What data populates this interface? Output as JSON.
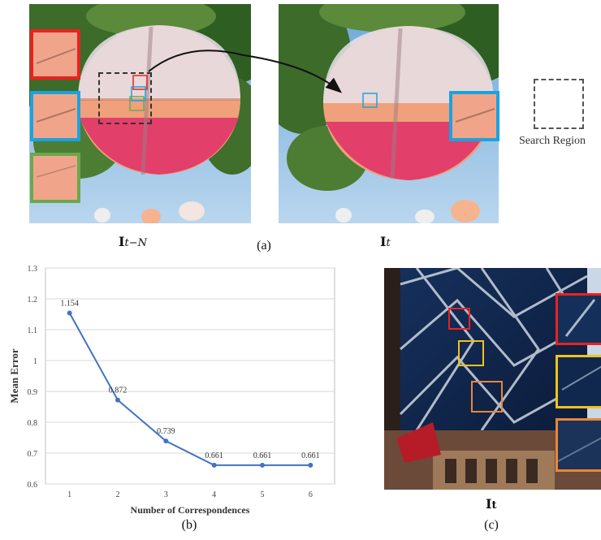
{
  "figure": {
    "panel_a": {
      "caption": "(a)",
      "left_label_main": "I",
      "left_label_sub": "t−N",
      "right_label_main": "I",
      "right_label_sub": "t",
      "legend_label": "Search Region",
      "colors": {
        "red": "#e8231f",
        "blue": "#1aa3e0",
        "green": "#6aa84f",
        "dashed": "#333333"
      }
    },
    "panel_b": {
      "caption": "(b)"
    },
    "panel_c": {
      "caption": "(c)",
      "label_main": "I",
      "label_sub": "t",
      "colors": {
        "red": "#e8231f",
        "yellow": "#f2c21b",
        "orange": "#e8873a"
      }
    }
  },
  "chart_data": {
    "type": "line",
    "x": [
      1,
      2,
      3,
      4,
      5,
      6
    ],
    "values": [
      1.154,
      0.872,
      0.739,
      0.661,
      0.661,
      0.661
    ],
    "data_labels": [
      "1.154",
      "0.872",
      "0.739",
      "0.661",
      "0.661",
      "0.661"
    ],
    "xlabel": "Number of Correspondences",
    "ylabel": "Mean Error",
    "ylim": [
      0.6,
      1.3
    ],
    "yticks": [
      "0.6",
      "0.7",
      "0.8",
      "0.9",
      "1",
      "1.1",
      "1.2",
      "1.3"
    ],
    "xticks": [
      "1",
      "2",
      "3",
      "4",
      "5",
      "6"
    ],
    "grid": true,
    "line_color": "#4472c4"
  }
}
